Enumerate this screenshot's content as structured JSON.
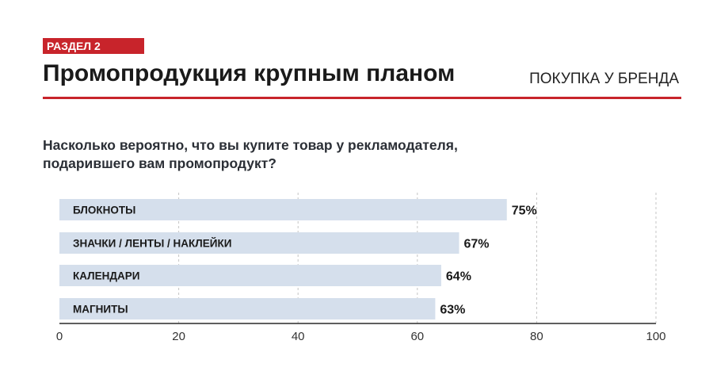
{
  "header": {
    "section_badge": "РАЗДЕЛ 2",
    "title": "Промопродукция крупным планом",
    "right_label": "ПОКУПКА У БРЕНДА",
    "accent_color": "#c8242b"
  },
  "question": "Насколько вероятно, что вы купите товар у рекламодателя, подарившего вам промопродукт?",
  "chart_data": {
    "type": "bar",
    "orientation": "horizontal",
    "categories": [
      "БЛОКНОТЫ",
      "ЗНАЧКИ / ЛЕНТЫ / НАКЛЕЙКИ",
      "КАЛЕНДАРИ",
      "МАГНИТЫ"
    ],
    "values": [
      75,
      67,
      64,
      63
    ],
    "value_labels": [
      "75%",
      "67%",
      "64%",
      "63%"
    ],
    "xlim": [
      0,
      100
    ],
    "xticks": [
      0,
      20,
      40,
      60,
      80,
      100
    ],
    "grid": true,
    "bar_color": "#d5dfec"
  }
}
